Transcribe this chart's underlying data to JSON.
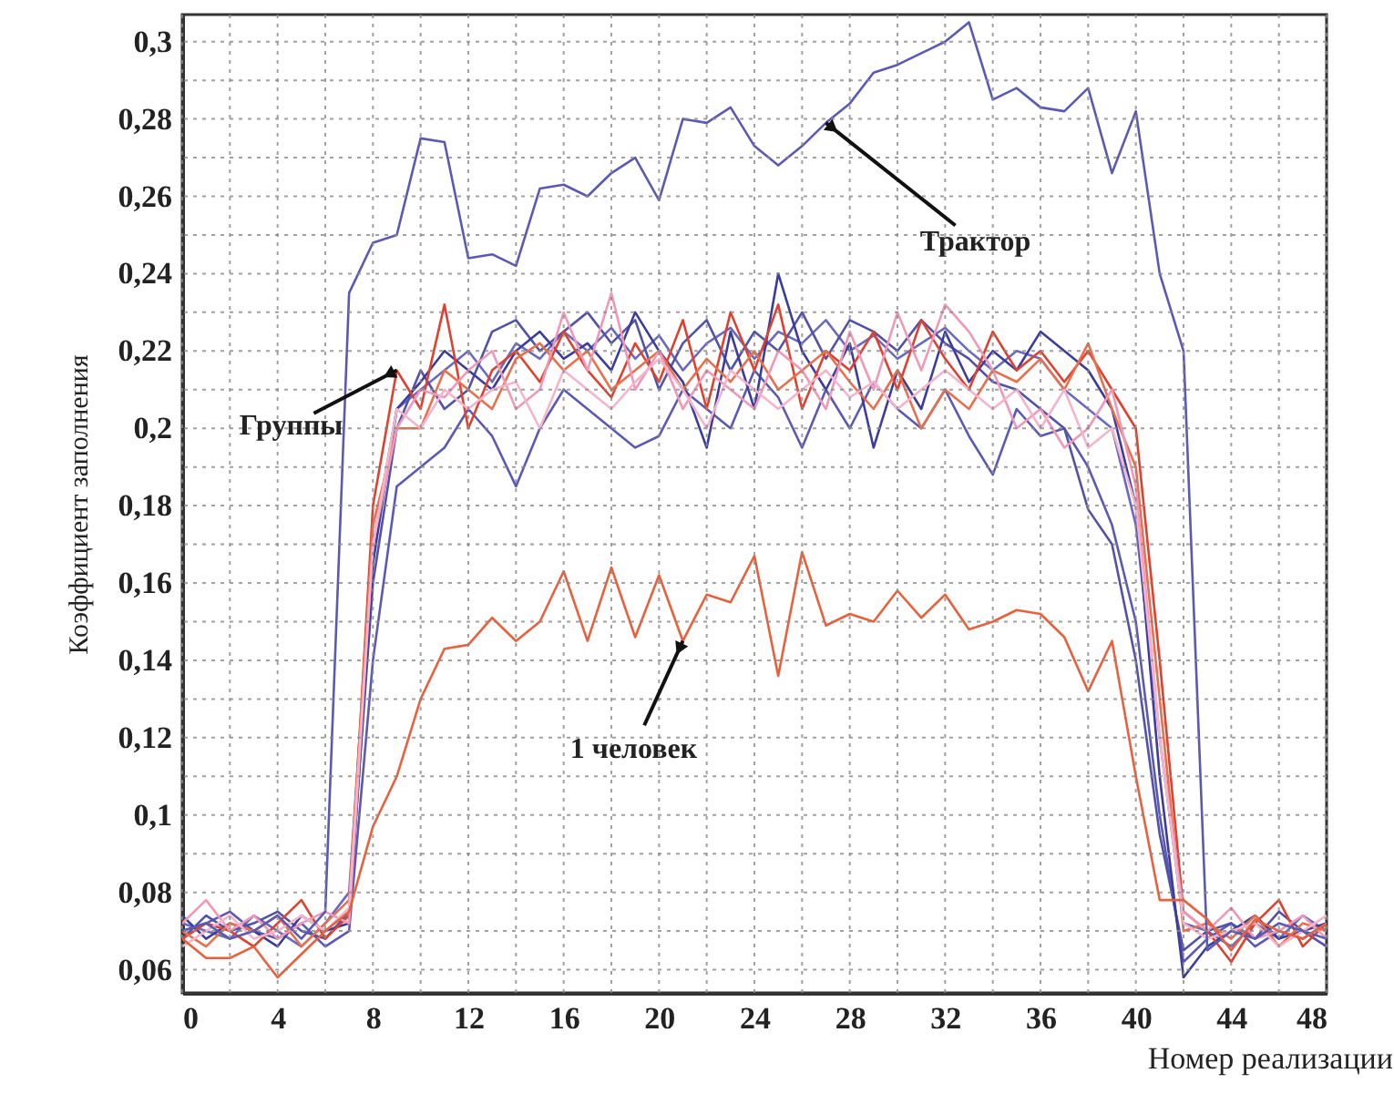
{
  "chart_data": {
    "type": "line",
    "xlabel": "Номер реализации",
    "ylabel": "Коэффициент заполнения",
    "x": [
      0,
      1,
      2,
      3,
      4,
      5,
      6,
      7,
      8,
      9,
      10,
      11,
      12,
      13,
      14,
      15,
      16,
      17,
      18,
      19,
      20,
      21,
      22,
      23,
      24,
      25,
      26,
      27,
      28,
      29,
      30,
      31,
      32,
      33,
      34,
      35,
      36,
      37,
      38,
      39,
      40,
      41,
      42,
      43,
      44,
      45,
      46,
      47,
      48
    ],
    "xlim": [
      0,
      48
    ],
    "xticks": [
      0,
      {
        "value": 2,
        "label": null
      },
      4,
      {
        "value": 6,
        "label": null
      },
      8,
      {
        "value": 10,
        "label": null
      },
      12,
      {
        "value": 14,
        "label": null
      },
      16,
      {
        "value": 18,
        "label": null
      },
      20,
      {
        "value": 22,
        "label": null
      },
      24,
      {
        "value": 26,
        "label": null
      },
      28,
      {
        "value": 30,
        "label": null
      },
      32,
      {
        "value": 34,
        "label": null
      },
      36,
      {
        "value": 38,
        "label": null
      },
      40,
      {
        "value": 42,
        "label": null
      },
      44,
      {
        "value": 46,
        "label": null
      },
      48
    ],
    "ylim": [
      0.054,
      0.307
    ],
    "yticks": [
      {
        "value": 0.06,
        "label": "0,06"
      },
      {
        "value": 0.07,
        "label": null
      },
      {
        "value": 0.08,
        "label": "0,08"
      },
      {
        "value": 0.09,
        "label": null
      },
      {
        "value": 0.1,
        "label": "0,1"
      },
      {
        "value": 0.11,
        "label": null
      },
      {
        "value": 0.12,
        "label": "0,12"
      },
      {
        "value": 0.13,
        "label": null
      },
      {
        "value": 0.14,
        "label": "0,14"
      },
      {
        "value": 0.15,
        "label": null
      },
      {
        "value": 0.16,
        "label": "0,16"
      },
      {
        "value": 0.17,
        "label": null
      },
      {
        "value": 0.18,
        "label": "0,18"
      },
      {
        "value": 0.19,
        "label": null
      },
      {
        "value": 0.2,
        "label": "0,2"
      },
      {
        "value": 0.21,
        "label": null
      },
      {
        "value": 0.22,
        "label": "0,22"
      },
      {
        "value": 0.23,
        "label": null
      },
      {
        "value": 0.24,
        "label": "0,24"
      },
      {
        "value": 0.25,
        "label": null
      },
      {
        "value": 0.26,
        "label": "0,26"
      },
      {
        "value": 0.27,
        "label": null
      },
      {
        "value": 0.28,
        "label": "0,28"
      },
      {
        "value": 0.29,
        "label": null
      },
      {
        "value": 0.3,
        "label": "0,3"
      }
    ],
    "grid": true,
    "line_style": "solid",
    "series": [
      {
        "color": "#6a6ac0",
        "values": [
          0.072,
          0.07,
          0.068,
          0.074,
          0.07,
          0.066,
          0.072,
          0.08,
          0.17,
          0.205,
          0.21,
          0.215,
          0.22,
          0.212,
          0.222,
          0.218,
          0.225,
          0.22,
          0.226,
          0.218,
          0.224,
          0.215,
          0.222,
          0.226,
          0.218,
          0.225,
          0.222,
          0.228,
          0.22,
          0.224,
          0.218,
          0.222,
          0.226,
          0.22,
          0.215,
          0.22,
          0.218,
          0.21,
          0.205,
          0.2,
          0.175,
          0.12,
          0.072,
          0.07,
          0.066,
          0.072,
          0.068,
          0.074,
          0.07
        ]
      },
      {
        "color": "#5a5ab4",
        "values": [
          0.07,
          0.072,
          0.075,
          0.07,
          0.068,
          0.072,
          0.066,
          0.07,
          0.14,
          0.185,
          0.19,
          0.195,
          0.205,
          0.198,
          0.185,
          0.2,
          0.21,
          0.205,
          0.2,
          0.195,
          0.198,
          0.21,
          0.205,
          0.2,
          0.215,
          0.208,
          0.195,
          0.21,
          0.2,
          0.212,
          0.205,
          0.2,
          0.21,
          0.198,
          0.188,
          0.205,
          0.198,
          0.2,
          0.19,
          0.175,
          0.15,
          0.1,
          0.062,
          0.068,
          0.072,
          0.066,
          0.07,
          0.068,
          0.072
        ]
      },
      {
        "color": "#5252a8",
        "values": [
          0.068,
          0.074,
          0.07,
          0.072,
          0.075,
          0.07,
          0.068,
          0.075,
          0.16,
          0.2,
          0.215,
          0.205,
          0.21,
          0.225,
          0.228,
          0.22,
          0.225,
          0.23,
          0.222,
          0.228,
          0.21,
          0.222,
          0.228,
          0.215,
          0.225,
          0.22,
          0.23,
          0.218,
          0.228,
          0.225,
          0.22,
          0.228,
          0.222,
          0.218,
          0.212,
          0.21,
          0.205,
          0.2,
          0.179,
          0.17,
          0.14,
          0.095,
          0.065,
          0.07,
          0.072,
          0.068,
          0.075,
          0.07,
          0.066
        ]
      },
      {
        "color": "#3c3c9c",
        "values": [
          0.074,
          0.068,
          0.072,
          0.07,
          0.066,
          0.074,
          0.07,
          0.072,
          0.165,
          0.205,
          0.212,
          0.22,
          0.215,
          0.21,
          0.22,
          0.225,
          0.218,
          0.222,
          0.215,
          0.23,
          0.22,
          0.212,
          0.195,
          0.225,
          0.205,
          0.24,
          0.22,
          0.21,
          0.222,
          0.195,
          0.215,
          0.205,
          0.225,
          0.212,
          0.22,
          0.215,
          0.225,
          0.22,
          0.215,
          0.205,
          0.18,
          0.11,
          0.058,
          0.066,
          0.07,
          0.074,
          0.068,
          0.07,
          0.072
        ]
      },
      {
        "color": "#e0402e",
        "values": [
          0.068,
          0.072,
          0.07,
          0.066,
          0.072,
          0.078,
          0.068,
          0.074,
          0.18,
          0.215,
          0.205,
          0.232,
          0.2,
          0.215,
          0.22,
          0.212,
          0.225,
          0.215,
          0.208,
          0.222,
          0.212,
          0.228,
          0.205,
          0.23,
          0.215,
          0.232,
          0.205,
          0.22,
          0.215,
          0.225,
          0.21,
          0.228,
          0.218,
          0.21,
          0.225,
          0.215,
          0.22,
          0.212,
          0.22,
          0.21,
          0.2,
          0.14,
          0.075,
          0.07,
          0.062,
          0.072,
          0.078,
          0.066,
          0.072
        ]
      },
      {
        "color": "#e8704c",
        "values": [
          0.07,
          0.066,
          0.072,
          0.07,
          0.074,
          0.066,
          0.072,
          0.078,
          0.175,
          0.2,
          0.2,
          0.215,
          0.21,
          0.205,
          0.218,
          0.222,
          0.215,
          0.22,
          0.21,
          0.215,
          0.22,
          0.21,
          0.218,
          0.212,
          0.22,
          0.21,
          0.215,
          0.22,
          0.212,
          0.205,
          0.215,
          0.2,
          0.21,
          0.205,
          0.215,
          0.212,
          0.218,
          0.21,
          0.222,
          0.205,
          0.19,
          0.13,
          0.07,
          0.072,
          0.068,
          0.074,
          0.066,
          0.072,
          0.07
        ]
      },
      {
        "color": "#f098b8",
        "values": [
          0.072,
          0.078,
          0.07,
          0.074,
          0.068,
          0.072,
          0.075,
          0.072,
          0.17,
          0.2,
          0.21,
          0.208,
          0.215,
          0.22,
          0.205,
          0.21,
          0.23,
          0.215,
          0.235,
          0.21,
          0.22,
          0.205,
          0.215,
          0.21,
          0.205,
          0.22,
          0.215,
          0.205,
          0.225,
          0.21,
          0.23,
          0.215,
          0.232,
          0.225,
          0.215,
          0.2,
          0.205,
          0.195,
          0.2,
          0.21,
          0.185,
          0.12,
          0.075,
          0.07,
          0.076,
          0.068,
          0.07,
          0.074,
          0.068
        ]
      },
      {
        "color": "#f4b4cc",
        "values": [
          0.066,
          0.07,
          0.074,
          0.068,
          0.07,
          0.074,
          0.07,
          0.076,
          0.17,
          0.205,
          0.2,
          0.21,
          0.205,
          0.21,
          0.212,
          0.2,
          0.215,
          0.21,
          0.205,
          0.212,
          0.218,
          0.21,
          0.2,
          0.215,
          0.21,
          0.205,
          0.21,
          0.215,
          0.208,
          0.212,
          0.205,
          0.21,
          0.215,
          0.21,
          0.205,
          0.21,
          0.2,
          0.21,
          0.195,
          0.2,
          0.18,
          0.12,
          0.072,
          0.068,
          0.07,
          0.072,
          0.066,
          0.07,
          0.074
        ]
      },
      {
        "color": "#5a5ab4",
        "values": [
          0.07,
          0.072,
          0.068,
          0.07,
          0.074,
          0.068,
          0.075,
          0.235,
          0.248,
          0.25,
          0.275,
          0.274,
          0.244,
          0.245,
          0.242,
          0.262,
          0.263,
          0.26,
          0.266,
          0.27,
          0.259,
          0.28,
          0.279,
          0.283,
          0.273,
          0.268,
          0.273,
          0.279,
          0.284,
          0.292,
          0.294,
          0.297,
          0.3,
          0.305,
          0.285,
          0.288,
          0.283,
          0.282,
          0.288,
          0.266,
          0.282,
          0.24,
          0.22,
          0.065,
          0.07,
          0.068,
          0.072,
          0.07,
          0.068
        ]
      },
      {
        "color": "#e8603c",
        "values": [
          0.068,
          0.063,
          0.063,
          0.066,
          0.058,
          0.064,
          0.07,
          0.075,
          0.097,
          0.11,
          0.13,
          0.143,
          0.144,
          0.151,
          0.145,
          0.15,
          0.163,
          0.145,
          0.164,
          0.146,
          0.162,
          0.145,
          0.157,
          0.155,
          0.167,
          0.136,
          0.168,
          0.149,
          0.152,
          0.15,
          0.158,
          0.151,
          0.157,
          0.148,
          0.15,
          0.153,
          0.152,
          0.146,
          0.132,
          0.145,
          0.11,
          0.078,
          0.078,
          0.073,
          0.065,
          0.073,
          0.07,
          0.068,
          0.072
        ]
      }
    ],
    "annotations": [
      {
        "text": "Трактор",
        "x": 27,
        "y": 0.279
      },
      {
        "text": "Группы",
        "x": 9,
        "y": 0.215
      },
      {
        "text": "1 человек",
        "x": 21,
        "y": 0.145
      }
    ]
  }
}
